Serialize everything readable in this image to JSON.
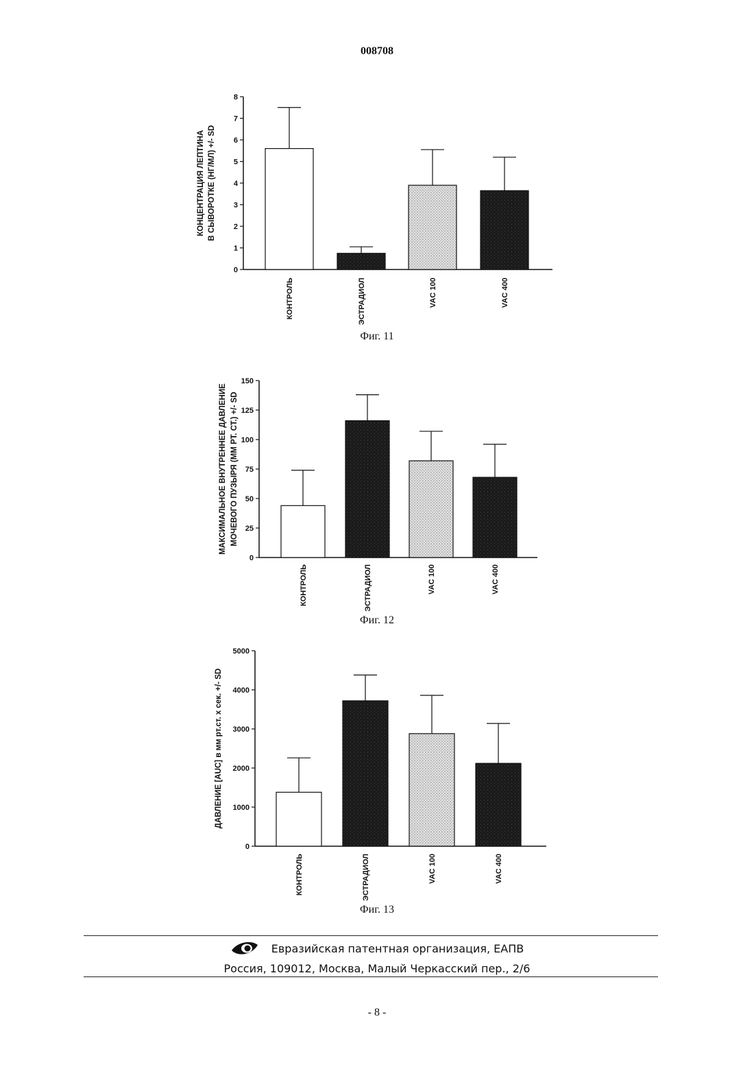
{
  "header": {
    "doc_number": "008708"
  },
  "colors": {
    "white": "#ffffff",
    "dark": "#1b1b1b",
    "light_dotted": "#d4d4d4",
    "black": "#111111"
  },
  "chart_data": [
    {
      "type": "bar",
      "caption": "Фиг. 11",
      "ylabel_lines": [
        "КОНЦЕНТРАЦИЯ ЛЕПТИНА",
        "В СЫВОРОТКЕ (НГ/МЛ) +/- SD"
      ],
      "categories": [
        "КОНТРОЛЬ",
        "ЭСТРАДИОЛ",
        "VAC 100",
        "VAC 400"
      ],
      "values": [
        5.6,
        0.75,
        3.9,
        3.65
      ],
      "errors": [
        1.9,
        0.3,
        1.65,
        1.55
      ],
      "fills": [
        "white",
        "dark",
        "light_dotted",
        "dark"
      ],
      "ylim": [
        0,
        8
      ],
      "yticks": [
        0,
        1,
        2,
        3,
        4,
        5,
        6,
        7,
        8
      ],
      "ytick_labels": [
        "0",
        "1",
        "2",
        "3",
        "4",
        "5",
        "6",
        "7",
        "8"
      ]
    },
    {
      "type": "bar",
      "caption": "Фиг. 12",
      "ylabel_lines": [
        "МАКСИМАЛЬНОЕ ВНУТРЕННЕЕ ДАВЛЕНИЕ",
        "МОЧЕВОГО ПУЗЫРЯ (ММ РТ. СТ.)  +/- SD"
      ],
      "categories": [
        "КОНТРОЛЬ",
        "ЭСТРАДИОЛ",
        "VAC 100",
        "VAC 400"
      ],
      "values": [
        44,
        116,
        82,
        68
      ],
      "errors": [
        30,
        22,
        25,
        28
      ],
      "fills": [
        "white",
        "dark",
        "light_dotted",
        "dark"
      ],
      "ylim": [
        0,
        150
      ],
      "yticks": [
        0,
        25,
        50,
        75,
        100,
        125,
        150
      ],
      "ytick_labels": [
        "0",
        "25",
        "50",
        "75",
        "100",
        "125",
        "150"
      ]
    },
    {
      "type": "bar",
      "caption": "Фиг. 13",
      "ylabel_lines": [
        "ДАВЛЕНИЕ [AUC] в мм рт.ст. x сек.  +/- SD"
      ],
      "categories": [
        "КОНТРОЛЬ",
        "ЭСТРАДИОЛ",
        "VAC 100",
        "VAC 400"
      ],
      "values": [
        1380,
        3720,
        2880,
        2120
      ],
      "errors": [
        880,
        660,
        980,
        1020
      ],
      "fills": [
        "white",
        "dark",
        "light_dotted",
        "dark"
      ],
      "ylim": [
        0,
        5000
      ],
      "yticks": [
        0,
        1000,
        2000,
        3000,
        4000,
        5000
      ],
      "ytick_labels": [
        "0",
        "1000",
        "2000",
        "3000",
        "4000",
        "5000"
      ]
    }
  ],
  "footer": {
    "org": "Евразийская патентная организация, ЕАПВ",
    "address": "Россия, 109012, Москва, Малый Черкасский пер., 2/6",
    "logo_icon": "eye-logo-icon"
  },
  "page": {
    "number": "- 8 -"
  }
}
